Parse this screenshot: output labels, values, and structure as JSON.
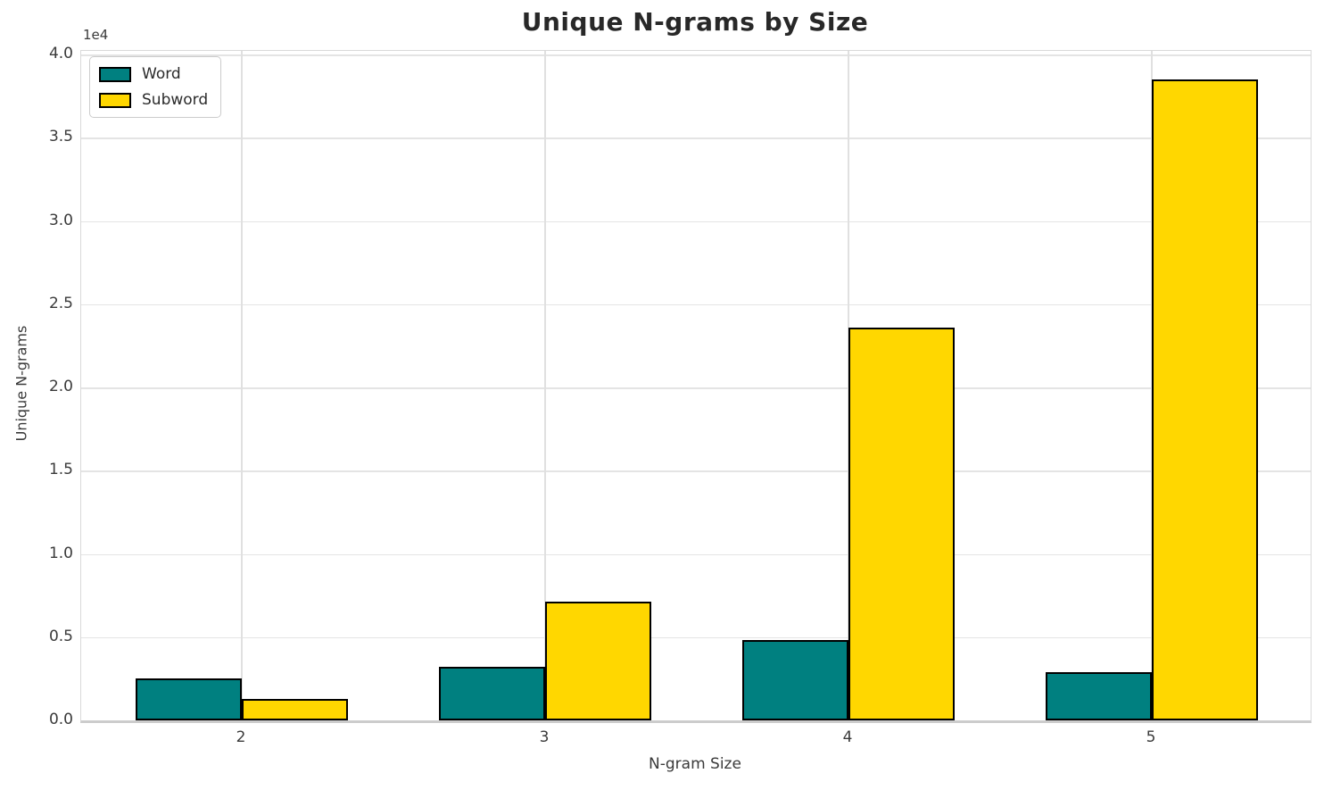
{
  "chart_data": {
    "type": "bar",
    "title": "Unique N-grams by Size",
    "xlabel": "N-gram Size",
    "ylabel": "Unique N-grams",
    "offset_text": "1e4",
    "categories": [
      "2",
      "3",
      "4",
      "5"
    ],
    "series": [
      {
        "name": "Word",
        "color": "#008080",
        "values": [
          2400,
          3100,
          4700,
          2800
        ]
      },
      {
        "name": "Subword",
        "color": "#FFD700",
        "values": [
          1200,
          7000,
          23500,
          38400
        ]
      }
    ],
    "ylim": [
      0,
      40000
    ],
    "y_ticks": [
      0,
      5000,
      10000,
      15000,
      20000,
      25000,
      30000,
      35000,
      40000
    ],
    "y_tick_labels": [
      "0.0",
      "0.5",
      "1.0",
      "1.5",
      "2.0",
      "2.5",
      "3.0",
      "3.5",
      "4.0"
    ],
    "grid": true,
    "legend_position": "upper left",
    "bar_edge_color": "#000000",
    "colors": {
      "word": "#008080",
      "subword": "#FFD700",
      "grid": "#e4e4e4",
      "text": "#3a3a3a"
    }
  }
}
